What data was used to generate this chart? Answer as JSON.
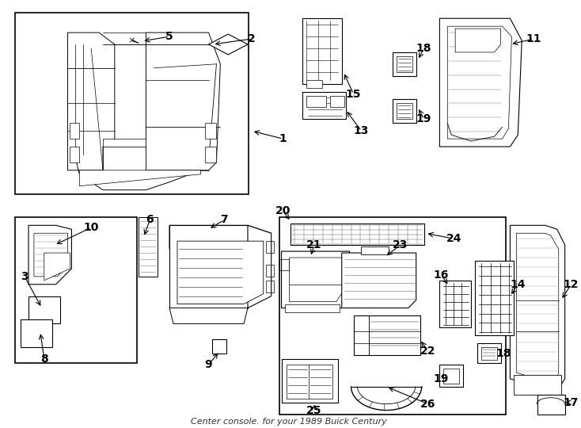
{
  "title": "Center console. for your 1989 Buick Century",
  "bg_color": "#ffffff",
  "line_color": "#000000",
  "fig_width": 7.34,
  "fig_height": 5.4,
  "dpi": 100
}
